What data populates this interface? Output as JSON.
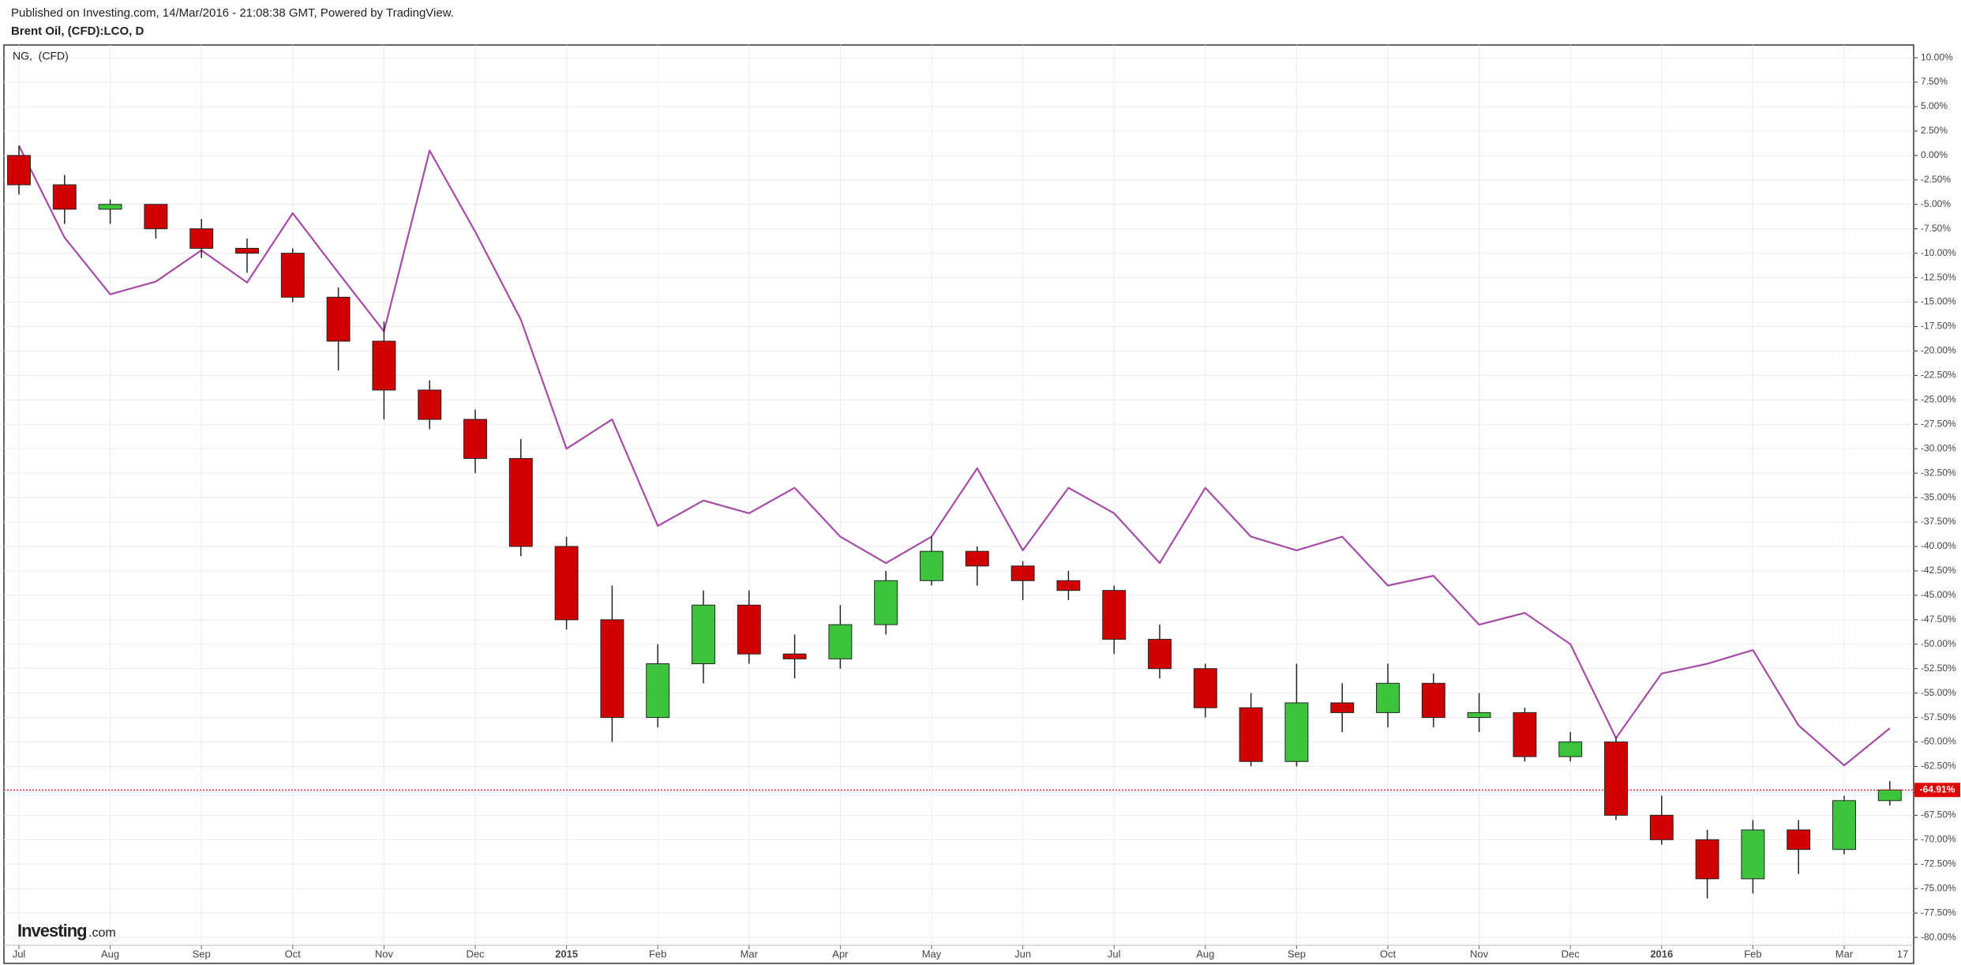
{
  "header": {
    "published": "Published on Investing.com, 14/Mar/2016 - 21:08:38 GMT, Powered by TradingView."
  },
  "logo": {
    "brand": "Investing",
    "suffix": ".com"
  },
  "chart_data": {
    "type": "candlestick",
    "categories": [
      "Jul",
      null,
      "Aug",
      null,
      "Sep",
      null,
      "Oct",
      null,
      "Nov",
      null,
      "Dec",
      null,
      "2015",
      null,
      "Feb",
      null,
      "Mar",
      null,
      "Apr",
      null,
      "May",
      null,
      "Jun",
      null,
      "Jul",
      null,
      "Aug",
      null,
      "Sep",
      null,
      "Oct",
      null,
      "Nov",
      null,
      "Dec",
      null,
      "2016",
      null,
      "Feb",
      null,
      "Mar",
      null
    ],
    "x_end_label": "17",
    "series": [
      {
        "name": "Brent Oil, (CFD):LCO, D",
        "type": "candlestick",
        "up_color": "#3cc43c",
        "down_color": "#d10000",
        "open": [
          0,
          -3,
          -5.5,
          -5,
          -7.5,
          -9.5,
          -10,
          -14.5,
          -19,
          -24,
          -27,
          -31,
          -40,
          -47.5,
          -57.5,
          -52,
          -46,
          -51,
          -51.5,
          -48,
          -43.5,
          -40.5,
          -42,
          -43.5,
          -44.5,
          -49.5,
          -52.5,
          -56.5,
          -62,
          -56,
          -57,
          -54,
          -57.5,
          -57,
          -61.5,
          -60,
          -67.5,
          -70,
          -74,
          -69,
          -71,
          -66
        ],
        "high": [
          1,
          -2,
          -4.5,
          -5,
          -6.5,
          -8.5,
          -9.5,
          -13.5,
          -17,
          -23,
          -26,
          -29,
          -39,
          -44,
          -50,
          -44.5,
          -44.5,
          -49,
          -46,
          -42.5,
          -39,
          -40,
          -41.5,
          -42.5,
          -44,
          -48,
          -52,
          -55,
          -52,
          -54,
          -52,
          -53,
          -55,
          -56.5,
          -59,
          -59.5,
          -65.5,
          -69,
          -68,
          -68,
          -65.5,
          -64
        ],
        "low": [
          -4,
          -7,
          -7,
          -8.5,
          -10.5,
          -12,
          -15,
          -22,
          -27,
          -28,
          -32.5,
          -41,
          -48.5,
          -60,
          -58.5,
          -54,
          -52,
          -53.5,
          -52.5,
          -49,
          -44,
          -44,
          -45.5,
          -45.5,
          -51,
          -53.5,
          -57.5,
          -62.5,
          -62.5,
          -59,
          -58.5,
          -58.5,
          -59,
          -62,
          -62,
          -68,
          -70.5,
          -76,
          -75.5,
          -73.5,
          -71.5,
          -66.5
        ],
        "close": [
          -3,
          -5.5,
          -5,
          -7.5,
          -9.5,
          -10,
          -14.5,
          -19,
          -24,
          -27,
          -31,
          -40,
          -47.5,
          -57.5,
          -52,
          -46,
          -51,
          -51.5,
          -48,
          -43.5,
          -40.5,
          -42,
          -43.5,
          -44.5,
          -49.5,
          -52.5,
          -56.5,
          -62,
          -56,
          -57,
          -54,
          -57.5,
          -57,
          -61.5,
          -60,
          -67.5,
          -70,
          -74,
          -69,
          -71,
          -66,
          -64.91
        ]
      },
      {
        "name": "NG,  (CFD)",
        "type": "line",
        "color": "#a64ca6",
        "values": [
          1,
          -8.4,
          -14.2,
          -12.9,
          -9.7,
          -13,
          -5.9,
          -12,
          -18,
          0.5,
          -7.8,
          -16.8,
          -30,
          -27,
          -37.9,
          -35.3,
          -36.6,
          -34,
          -39,
          -41.7,
          -39,
          -32,
          -40.4,
          -34,
          -36.6,
          -41.7,
          -34,
          -39,
          -40.4,
          -39,
          -44,
          -43,
          -48,
          -46.8,
          -50,
          -59.6,
          -53,
          -52,
          -50.6,
          -58.3,
          -62.4,
          -58.6
        ]
      }
    ],
    "last_value_label": "-64.91%",
    "last_value_color": "#e00000",
    "ylim": [
      -80.8,
      11.3
    ],
    "yticks": [
      {
        "value": 10,
        "label": "10.00%"
      },
      {
        "value": 7.5,
        "label": "7.50%"
      },
      {
        "value": 5,
        "label": "5.00%"
      },
      {
        "value": 2.5,
        "label": "2.50%"
      },
      {
        "value": 0,
        "label": "0.00%"
      },
      {
        "value": -2.5,
        "label": "-2.50%"
      },
      {
        "value": -5,
        "label": "-5.00%"
      },
      {
        "value": -7.5,
        "label": "-7.50%"
      },
      {
        "value": -10,
        "label": "-10.00%"
      },
      {
        "value": -12.5,
        "label": "-12.50%"
      },
      {
        "value": -15,
        "label": "-15.00%"
      },
      {
        "value": -17.5,
        "label": "-17.50%"
      },
      {
        "value": -20,
        "label": "-20.00%"
      },
      {
        "value": -22.5,
        "label": "-22.50%"
      },
      {
        "value": -25,
        "label": "-25.00%"
      },
      {
        "value": -27.5,
        "label": "-27.50%"
      },
      {
        "value": -30,
        "label": "-30.00%"
      },
      {
        "value": -32.5,
        "label": "-32.50%"
      },
      {
        "value": -35,
        "label": "-35.00%"
      },
      {
        "value": -37.5,
        "label": "-37.50%"
      },
      {
        "value": -40,
        "label": "-40.00%"
      },
      {
        "value": -42.5,
        "label": "-42.50%"
      },
      {
        "value": -45,
        "label": "-45.00%"
      },
      {
        "value": -47.5,
        "label": "-47.50%"
      },
      {
        "value": -50,
        "label": "-50.00%"
      },
      {
        "value": -52.5,
        "label": "-52.50%"
      },
      {
        "value": -55,
        "label": "-55.00%"
      },
      {
        "value": -57.5,
        "label": "-57.50%"
      },
      {
        "value": -60,
        "label": "-60.00%"
      },
      {
        "value": -62.5,
        "label": "-62.50%"
      },
      {
        "value": -65,
        "label": "-65.00%"
      },
      {
        "value": -67.5,
        "label": "-67.50%"
      },
      {
        "value": -70,
        "label": "-70.00%"
      },
      {
        "value": -72.5,
        "label": "-72.50%"
      },
      {
        "value": -75,
        "label": "-75.00%"
      },
      {
        "value": -77.5,
        "label": "-77.50%"
      },
      {
        "value": -80,
        "label": "-80.00%"
      }
    ],
    "grid": true
  }
}
